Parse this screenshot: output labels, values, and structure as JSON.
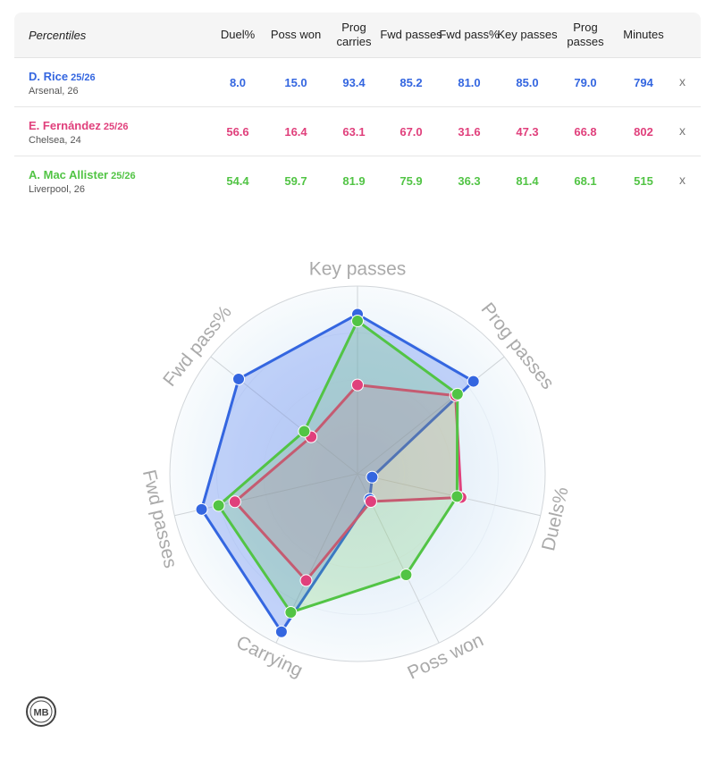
{
  "table": {
    "header_label": "Percentiles",
    "columns": [
      "Duel%",
      "Poss won",
      "Prog carries",
      "Fwd passes",
      "Fwd pass%",
      "Key passes",
      "Prog passes",
      "Minutes"
    ],
    "remove_label": "x"
  },
  "players": [
    {
      "name": "D. Rice",
      "season": "25/26",
      "club": "Arsenal, 26",
      "color": "#3466e0",
      "values": [
        "8.0",
        "15.0",
        "93.4",
        "85.2",
        "81.0",
        "85.0",
        "79.0",
        "794"
      ]
    },
    {
      "name": "E. Fernández",
      "season": "25/26",
      "club": "Chelsea, 24",
      "color": "#e0407c",
      "values": [
        "56.6",
        "16.4",
        "63.1",
        "67.0",
        "31.6",
        "47.3",
        "66.8",
        "802"
      ]
    },
    {
      "name": "A. Mac Allister",
      "season": "25/26",
      "club": "Liverpool, 26",
      "color": "#52c445",
      "values": [
        "54.4",
        "59.7",
        "81.9",
        "75.9",
        "36.3",
        "81.4",
        "68.1",
        "515"
      ]
    }
  ],
  "chart_data": {
    "type": "radar",
    "axes": [
      "Key passes",
      "Prog passes",
      "Duels%",
      "Poss won",
      "Carrying",
      "Fwd passes",
      "Fwd pass%"
    ],
    "range": [
      0,
      100
    ],
    "series": [
      {
        "name": "D. Rice",
        "color": "#3466e0",
        "fill": "rgba(70,110,240,0.28)",
        "values": [
          85.0,
          79.0,
          8.0,
          15.0,
          93.4,
          85.2,
          81.0
        ]
      },
      {
        "name": "E. Fernández",
        "color": "#e0407c",
        "fill": "rgba(230,70,130,0.16)",
        "values": [
          47.3,
          66.8,
          56.6,
          16.4,
          63.1,
          67.0,
          31.6
        ]
      },
      {
        "name": "A. Mac Allister",
        "color": "#52c445",
        "fill": "rgba(90,200,70,0.20)",
        "values": [
          81.4,
          68.1,
          54.4,
          59.7,
          81.9,
          75.9,
          36.3
        ]
      }
    ]
  },
  "logo": {
    "text": "MB"
  }
}
